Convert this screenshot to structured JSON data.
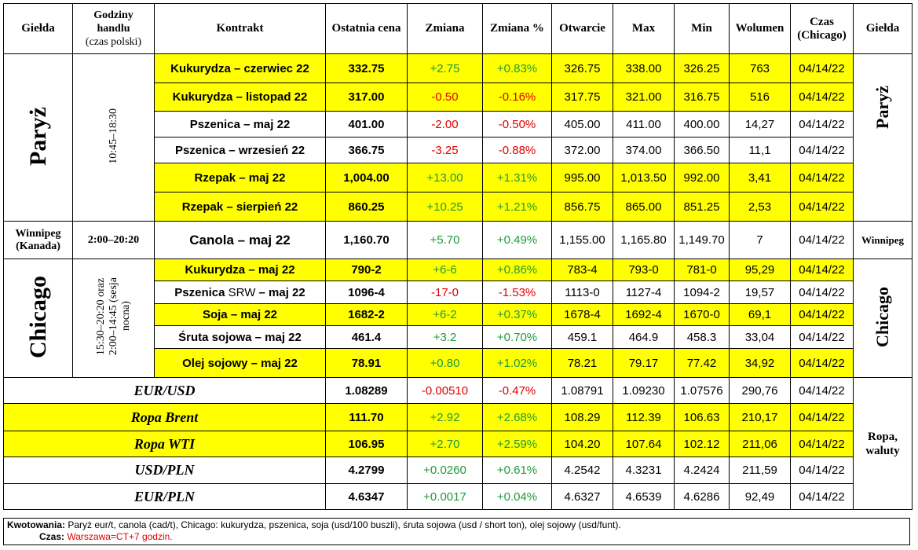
{
  "headers": {
    "market": "Giełda",
    "hours": "Godziny handlu (czas polski)",
    "hours_l1": "Godziny",
    "hours_l2": "handlu",
    "hours_l3": "(czas polski)",
    "contract": "Kontrakt",
    "last": "Ostatnia cena",
    "change": "Zmiana",
    "change_pct": "Zmiana %",
    "open": "Otwarcie",
    "max": "Max",
    "min": "Min",
    "volume": "Wolumen",
    "time_l1": "Czas",
    "time_l2": "(Chicago)",
    "market_right": "Giełda"
  },
  "groups": {
    "paris": {
      "name": "Paryż",
      "hours": "10:45–18:30"
    },
    "winnipeg": {
      "name": "Winnipeg (Kanada)",
      "name_l1": "Winnipeg",
      "name_l2": "(Kanada)",
      "hours": "2:00–20:20",
      "right": "Winnipeg"
    },
    "chicago": {
      "name": "Chicago",
      "hours_l1": "15:30–20:20 oraz",
      "hours_l2": "2:00–14:45 (sesja",
      "hours_l3": "nocna)"
    },
    "other": {
      "right_l1": "Ropa,",
      "right_l2": "waluty"
    }
  },
  "rows": [
    {
      "contract": "Kukurydza – czerwiec 22",
      "last": "332.75",
      "change": "+2.75",
      "change_pct": "+0.83%",
      "open": "326.75",
      "max": "338.00",
      "min": "326.25",
      "volume": "763",
      "time": "04/14/22"
    },
    {
      "contract": "Kukurydza – listopad 22",
      "last": "317.00",
      "change": "-0.50",
      "change_pct": "-0.16%",
      "open": "317.75",
      "max": "321.00",
      "min": "316.75",
      "volume": "516",
      "time": "04/14/22"
    },
    {
      "contract": "Pszenica – maj 22",
      "last": "401.00",
      "change": "-2.00",
      "change_pct": "-0.50%",
      "open": "405.00",
      "max": "411.00",
      "min": "400.00",
      "volume": "14,27",
      "time": "04/14/22"
    },
    {
      "contract": "Pszenica – wrzesień 22",
      "last": "366.75",
      "change": "-3.25",
      "change_pct": "-0.88%",
      "open": "372.00",
      "max": "374.00",
      "min": "366.50",
      "volume": "11,1",
      "time": "04/14/22"
    },
    {
      "contract": "Rzepak – maj 22",
      "last": "1,004.00",
      "change": "+13.00",
      "change_pct": "+1.31%",
      "open": "995.00",
      "max": "1,013.50",
      "min": "992.00",
      "volume": "3,41",
      "time": "04/14/22"
    },
    {
      "contract": "Rzepak – sierpień 22",
      "last": "860.25",
      "change": "+10.25",
      "change_pct": "+1.21%",
      "open": "856.75",
      "max": "865.00",
      "min": "851.25",
      "volume": "2,53",
      "time": "04/14/22"
    },
    {
      "contract": "Canola – maj 22",
      "last": "1,160.70",
      "change": "+5.70",
      "change_pct": "+0.49%",
      "open": "1,155.00",
      "max": "1,165.80",
      "min": "1,149.70",
      "volume": "7",
      "time": "04/14/22"
    },
    {
      "contract": "Kukurydza – maj 22",
      "last": "790-2",
      "change": "+6-6",
      "change_pct": "+0.86%",
      "open": "783-4",
      "max": "793-0",
      "min": "781-0",
      "volume": "95,29",
      "time": "04/14/22"
    },
    {
      "contract_a": "Pszenica ",
      "contract_b": "SRW",
      "contract_c": " – maj 22",
      "last": "1096-4",
      "change": "-17-0",
      "change_pct": "-1.53%",
      "open": "1113-0",
      "max": "1127-4",
      "min": "1094-2",
      "volume": "19,57",
      "time": "04/14/22"
    },
    {
      "contract": "Soja – maj 22",
      "last": "1682-2",
      "change": "+6-2",
      "change_pct": "+0.37%",
      "open": "1678-4",
      "max": "1692-4",
      "min": "1670-0",
      "volume": "69,1",
      "time": "04/14/22"
    },
    {
      "contract": "Śruta sojowa – maj 22",
      "last": "461.4",
      "change": "+3.2",
      "change_pct": "+0.70%",
      "open": "459.1",
      "max": "464.9",
      "min": "458.3",
      "volume": "33,04",
      "time": "04/14/22"
    },
    {
      "contract": "Olej sojowy – maj 22",
      "last": "78.91",
      "change": "+0.80",
      "change_pct": "+1.02%",
      "open": "78.21",
      "max": "79.17",
      "min": "77.42",
      "volume": "34,92",
      "time": "04/14/22"
    },
    {
      "contract": "EUR/USD",
      "last": "1.08289",
      "change": "-0.00510",
      "change_pct": "-0.47%",
      "open": "1.08791",
      "max": "1.09230",
      "min": "1.07576",
      "volume": "290,76",
      "time": "04/14/22"
    },
    {
      "contract": "Ropa Brent",
      "last": "111.70",
      "change": "+2.92",
      "change_pct": "+2.68%",
      "open": "108.29",
      "max": "112.39",
      "min": "106.63",
      "volume": "210,17",
      "time": "04/14/22"
    },
    {
      "contract": "Ropa WTI",
      "last": "106.95",
      "change": "+2.70",
      "change_pct": "+2.59%",
      "open": "104.20",
      "max": "107.64",
      "min": "102.12",
      "volume": "211,06",
      "time": "04/14/22"
    },
    {
      "contract": "USD/PLN",
      "last": "4.2799",
      "change": "+0.0260",
      "change_pct": "+0.61%",
      "open": "4.2542",
      "max": "4.3231",
      "min": "4.2424",
      "volume": "211,59",
      "time": "04/14/22"
    },
    {
      "contract": "EUR/PLN",
      "last": "4.6347",
      "change": "+0.0017",
      "change_pct": "+0.04%",
      "open": "4.6327",
      "max": "4.6539",
      "min": "4.6286",
      "volume": "92,49",
      "time": "04/14/22"
    }
  ],
  "footer": {
    "quotes_label": "Kwotowania:",
    "quotes_text": " Paryż eur/t, canola (cad/t), Chicago: kukurydza, pszenica, soja (usd/100 buszli), śruta sojowa (usd / short ton), olej sojowy (usd/funt).",
    "time_label": "Czas",
    "time_text": "Warszawa=CT+7 godzin."
  },
  "colors": {
    "highlight": "#ffff00",
    "positive": "#1e9a3d",
    "negative": "#e00000"
  }
}
